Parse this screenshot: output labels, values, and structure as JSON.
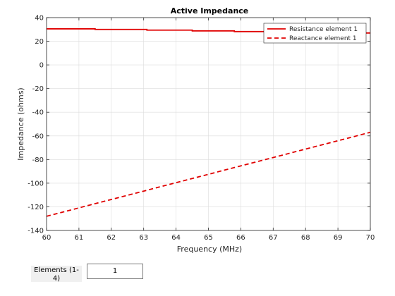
{
  "chart_data": {
    "type": "line",
    "title": "Active Impedance",
    "xlabel": "Frequency (MHz)",
    "ylabel": "Impedance (ohms)",
    "xlim": [
      60,
      70
    ],
    "ylim": [
      -140,
      40
    ],
    "xticks": [
      60,
      61,
      62,
      63,
      64,
      65,
      66,
      67,
      68,
      69,
      70
    ],
    "yticks": [
      -140,
      -120,
      -100,
      -80,
      -60,
      -40,
      -20,
      0,
      20,
      40
    ],
    "grid": true,
    "legend_position": "top-right",
    "series": [
      {
        "name": "Resistance element 1",
        "style": "solid",
        "color": "#e00000",
        "x": [
          60,
          61.5,
          61.5,
          63.1,
          63.1,
          64.5,
          64.5,
          65.8,
          65.8,
          67.2,
          67.2,
          68.5,
          68.5,
          70
        ],
        "y": [
          30.5,
          30.5,
          30,
          30,
          29.4,
          29.4,
          28.8,
          28.8,
          28.2,
          28.2,
          27.6,
          27.6,
          27,
          27
        ]
      },
      {
        "name": "Reactance element 1",
        "style": "dashed",
        "color": "#e00000",
        "x": [
          60,
          70
        ],
        "y": [
          -128,
          -57
        ]
      }
    ]
  },
  "controls": {
    "elements_label": "Elements (1-4)",
    "elements_value": "1"
  }
}
